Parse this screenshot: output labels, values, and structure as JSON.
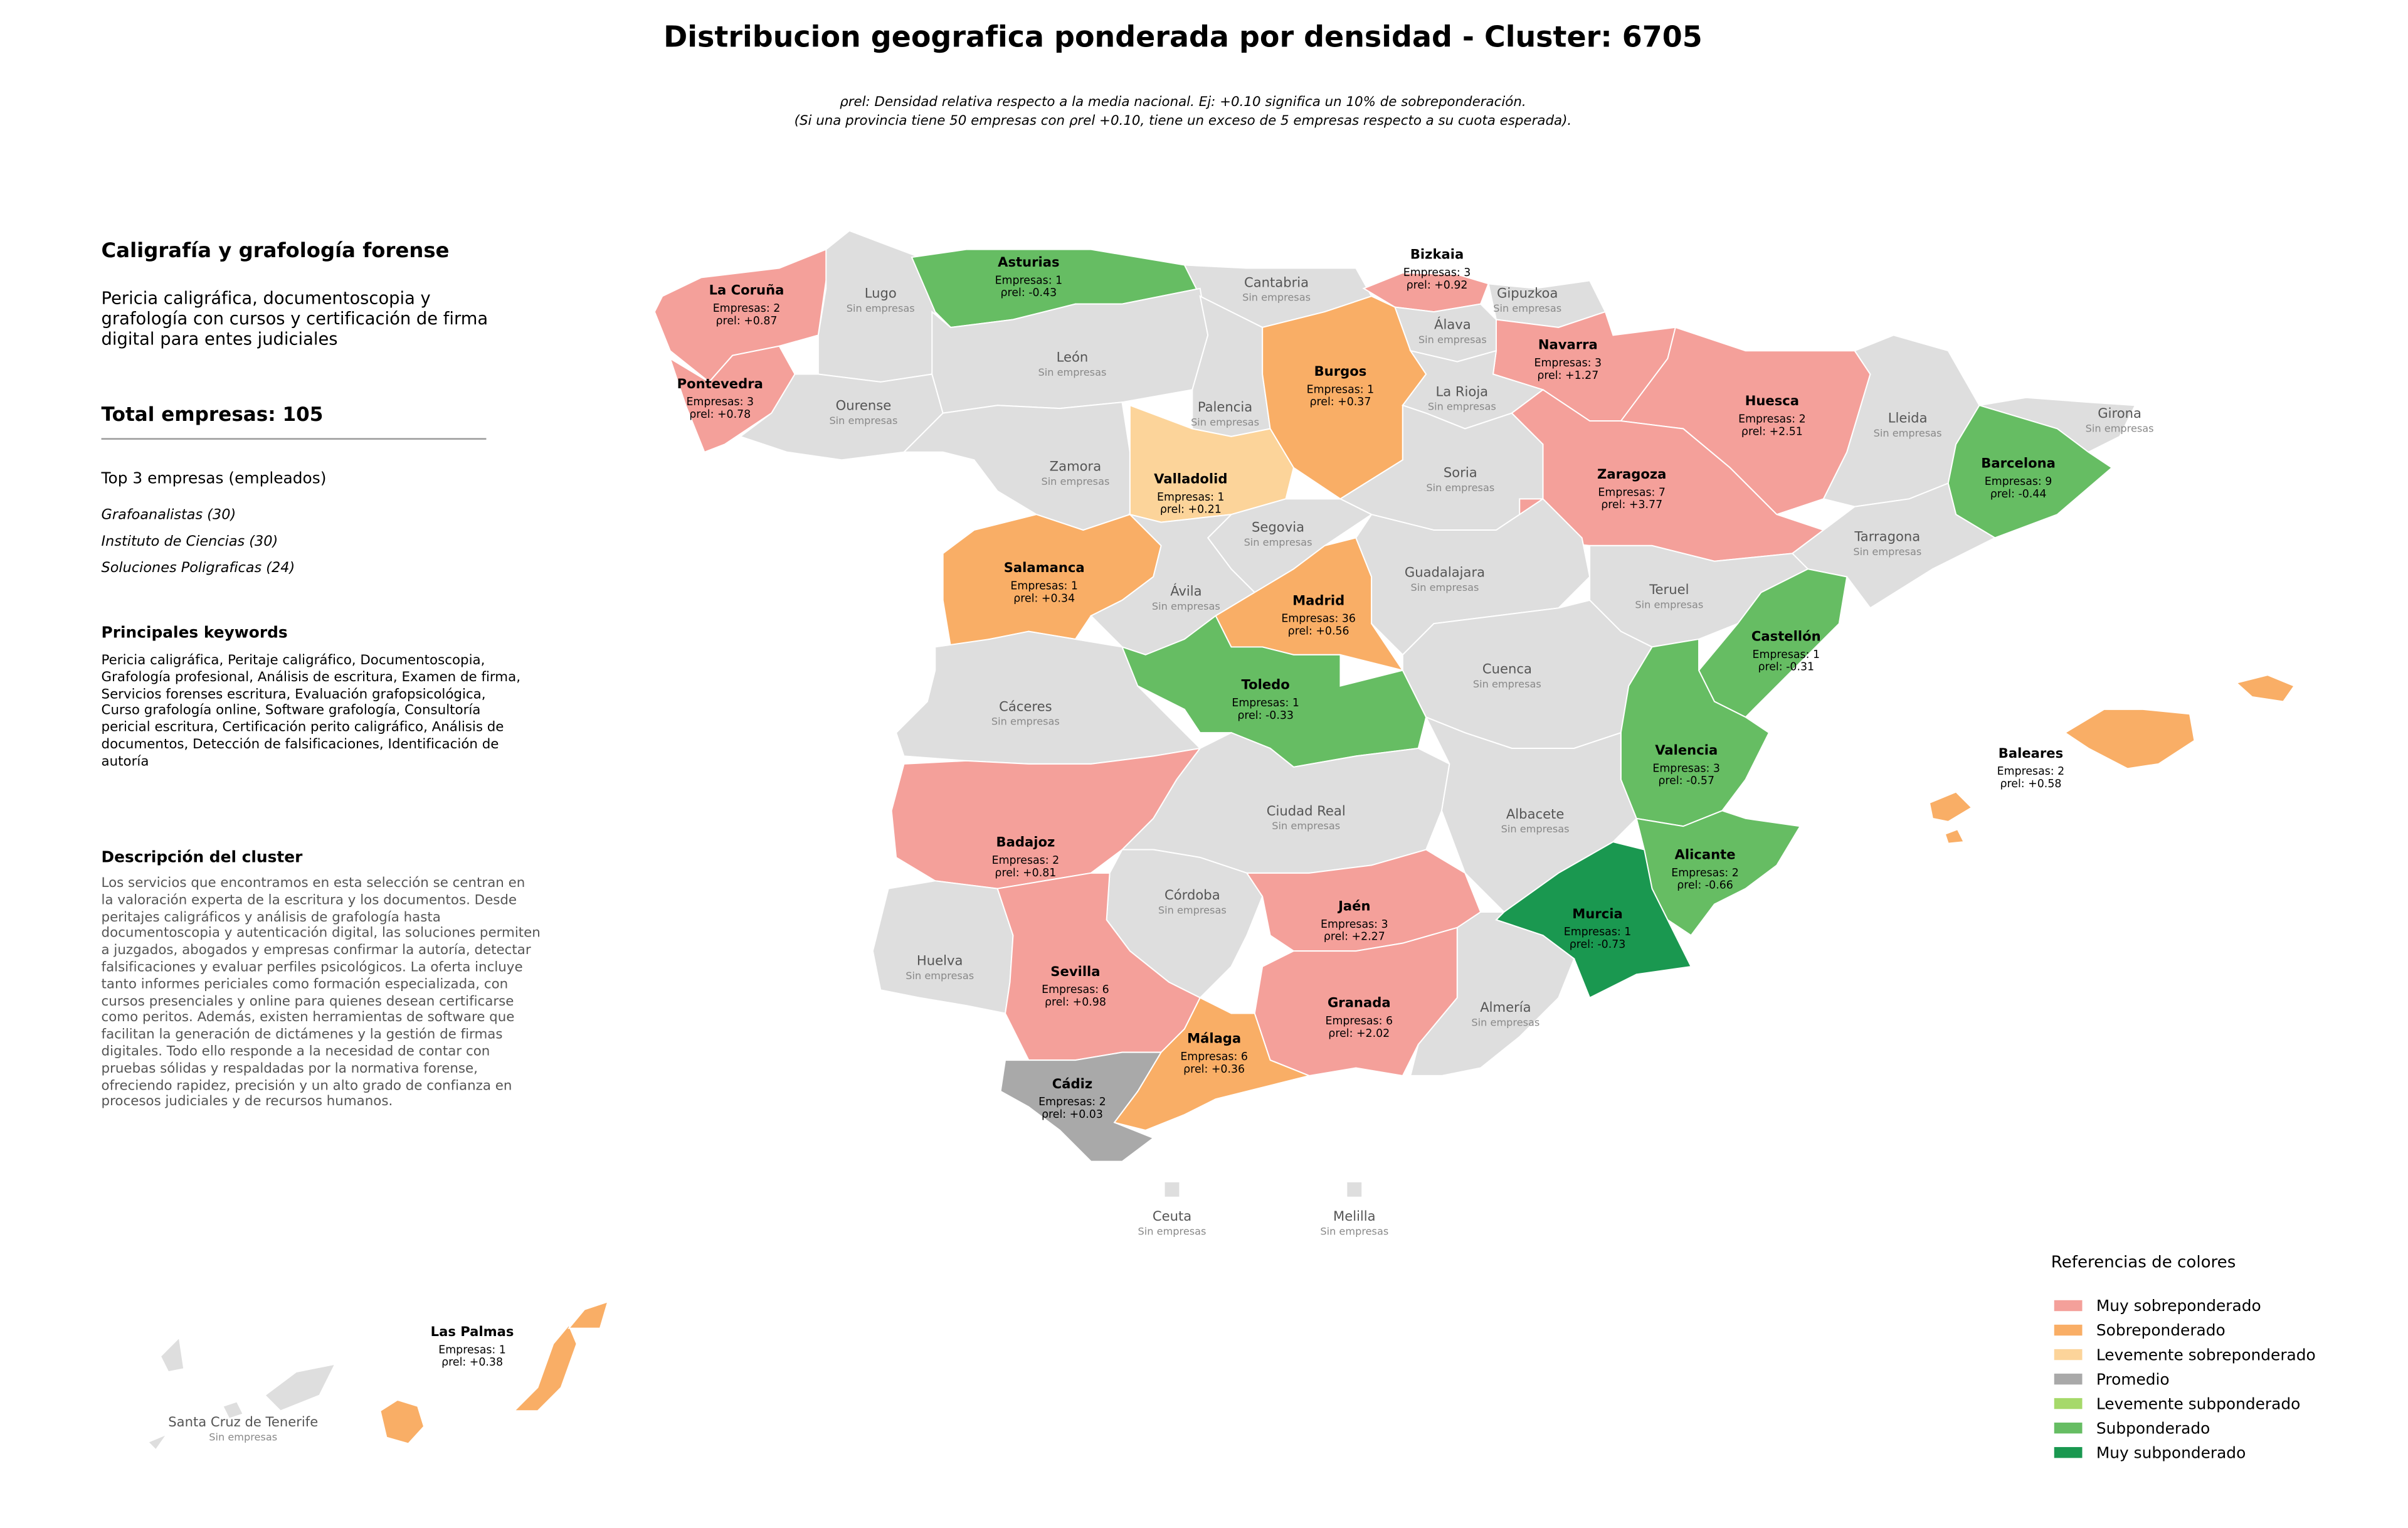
{
  "header": {
    "title": "Distribucion geografica ponderada por densidad - Cluster: 6705",
    "note_1": "ρrel: Densidad relativa respecto a la media nacional. Ej: +0.10 significa un 10% de sobreponderación.",
    "note_2": "(Si una provincia tiene 50 empresas con ρrel +0.10, tiene un exceso de 5 empresas respecto a su cuota esperada)."
  },
  "panel": {
    "title": "Caligrafía y grafología forense",
    "subtitle": "Pericia caligráfica, documentoscopia y grafología con cursos y certificación de firma digital para entes judiciales",
    "total": "Total empresas: 105",
    "top_title": "Top 3 empresas (empleados)",
    "top": [
      "Grafoanalistas (30)",
      "Instituto de Ciencias (30)",
      "Soluciones Poligraficas (24)"
    ],
    "keywords_title": "Principales keywords",
    "keywords": "Pericia caligráfica, Peritaje caligráfico, Documentoscopia, Grafología profesional, Análisis de escritura, Examen de firma, Servicios forenses escritura, Evaluación grafopsicológica, Curso grafología online, Software grafología, Consultoría pericial escritura, Certificación perito caligráfico, Análisis de documentos, Detección de falsificaciones, Identificación de autoría",
    "description_title": "Descripción del cluster",
    "description": "Los servicios que encontramos en esta selección se centran en la valoración experta de la escritura y los documentos. Desde peritajes caligráficos y análisis de grafología hasta documentoscopia y autenticación digital, las soluciones permiten a juzgados, abogados y empresas confirmar la autoría, detectar falsificaciones y evaluar perfiles psicológicos. La oferta incluye tanto informes periciales como formación especializada, con cursos presenciales y online para quienes desean certificarse como peritos. Además, existen herramientas de software que facilitan la generación de dictámenes y la gestión de firmas digitales. Todo ello responde a la necesidad de contar con pruebas sólidas y respaldadas por la normativa forense, ofreciendo rapidez, precisión y un alto grado de confianza en procesos judiciales y de recursos humanos."
  },
  "provinces": [
    {
      "name": "La Coruña",
      "empresas": "Empresas: 2",
      "rho": "ρrel: +0.87",
      "color": "#f4a09a"
    },
    {
      "name": "Lugo",
      "status": "Sin empresas",
      "color": "#dedede"
    },
    {
      "name": "Pontevedra",
      "empresas": "Empresas: 3",
      "rho": "ρrel: +0.78",
      "color": "#f4a09a"
    },
    {
      "name": "Ourense",
      "status": "Sin empresas",
      "color": "#dedede"
    },
    {
      "name": "Asturias",
      "empresas": "Empresas: 1",
      "rho": "ρrel: -0.43",
      "color": "#66bd63"
    },
    {
      "name": "Cantabria",
      "status": "Sin empresas",
      "color": "#dedede"
    },
    {
      "name": "Bizkaia",
      "empresas": "Empresas: 3",
      "rho": "ρrel: +0.92",
      "color": "#f4a09a"
    },
    {
      "name": "Gipuzkoa",
      "status": "Sin empresas",
      "color": "#dedede"
    },
    {
      "name": "Álava",
      "status": "Sin empresas",
      "color": "#dedede"
    },
    {
      "name": "Navarra",
      "empresas": "Empresas: 3",
      "rho": "ρrel: +1.27",
      "color": "#f4a09a"
    },
    {
      "name": "León",
      "status": "Sin empresas",
      "color": "#dedede"
    },
    {
      "name": "Palencia",
      "status": "Sin empresas",
      "color": "#dedede"
    },
    {
      "name": "Burgos",
      "empresas": "Empresas: 1",
      "rho": "ρrel: +0.37",
      "color": "#f9ae66"
    },
    {
      "name": "La Rioja",
      "status": "Sin empresas",
      "color": "#dedede"
    },
    {
      "name": "Zamora",
      "status": "Sin empresas",
      "color": "#dedede"
    },
    {
      "name": "Valladolid",
      "empresas": "Empresas: 1",
      "rho": "ρrel: +0.21",
      "color": "#fcd49a"
    },
    {
      "name": "Soria",
      "status": "Sin empresas",
      "color": "#dedede"
    },
    {
      "name": "Huesca",
      "empresas": "Empresas: 2",
      "rho": "ρrel: +2.51",
      "color": "#f4a09a"
    },
    {
      "name": "Zaragoza",
      "empresas": "Empresas: 7",
      "rho": "ρrel: +3.77",
      "color": "#f4a09a"
    },
    {
      "name": "Lleida",
      "status": "Sin empresas",
      "color": "#dedede"
    },
    {
      "name": "Girona",
      "status": "Sin empresas",
      "color": "#dedede"
    },
    {
      "name": "Barcelona",
      "empresas": "Empresas: 9",
      "rho": "ρrel: -0.44",
      "color": "#66bd63"
    },
    {
      "name": "Tarragona",
      "status": "Sin empresas",
      "color": "#dedede"
    },
    {
      "name": "Salamanca",
      "empresas": "Empresas: 1",
      "rho": "ρrel: +0.34",
      "color": "#f9ae66"
    },
    {
      "name": "Segovia",
      "status": "Sin empresas",
      "color": "#dedede"
    },
    {
      "name": "Ávila",
      "status": "Sin empresas",
      "color": "#dedede"
    },
    {
      "name": "Madrid",
      "empresas": "Empresas: 36",
      "rho": "ρrel: +0.56",
      "color": "#f9ae66"
    },
    {
      "name": "Guadalajara",
      "status": "Sin empresas",
      "color": "#dedede"
    },
    {
      "name": "Teruel",
      "status": "Sin empresas",
      "color": "#dedede"
    },
    {
      "name": "Castellón",
      "empresas": "Empresas: 1",
      "rho": "ρrel: -0.31",
      "color": "#66bd63"
    },
    {
      "name": "Cáceres",
      "status": "Sin empresas",
      "color": "#dedede"
    },
    {
      "name": "Toledo",
      "empresas": "Empresas: 1",
      "rho": "ρrel: -0.33",
      "color": "#66bd63"
    },
    {
      "name": "Cuenca",
      "status": "Sin empresas",
      "color": "#dedede"
    },
    {
      "name": "Valencia",
      "empresas": "Empresas: 3",
      "rho": "ρrel: -0.57",
      "color": "#66bd63"
    },
    {
      "name": "Badajoz",
      "empresas": "Empresas: 2",
      "rho": "ρrel: +0.81",
      "color": "#f4a09a"
    },
    {
      "name": "Ciudad Real",
      "status": "Sin empresas",
      "color": "#dedede"
    },
    {
      "name": "Albacete",
      "status": "Sin empresas",
      "color": "#dedede"
    },
    {
      "name": "Alicante",
      "empresas": "Empresas: 2",
      "rho": "ρrel: -0.66",
      "color": "#66bd63"
    },
    {
      "name": "Murcia",
      "empresas": "Empresas: 1",
      "rho": "ρrel: -0.73",
      "color": "#1a9850"
    },
    {
      "name": "Córdoba",
      "status": "Sin empresas",
      "color": "#dedede"
    },
    {
      "name": "Jaén",
      "empresas": "Empresas: 3",
      "rho": "ρrel: +2.27",
      "color": "#f4a09a"
    },
    {
      "name": "Granada",
      "empresas": "Empresas: 6",
      "rho": "ρrel: +2.02",
      "color": "#f4a09a"
    },
    {
      "name": "Almería",
      "status": "Sin empresas",
      "color": "#dedede"
    },
    {
      "name": "Huelva",
      "status": "Sin empresas",
      "color": "#dedede"
    },
    {
      "name": "Sevilla",
      "empresas": "Empresas: 6",
      "rho": "ρrel: +0.98",
      "color": "#f4a09a"
    },
    {
      "name": "Málaga",
      "empresas": "Empresas: 6",
      "rho": "ρrel: +0.36",
      "color": "#f9ae66"
    },
    {
      "name": "Cádiz",
      "empresas": "Empresas: 2",
      "rho": "ρrel: +0.03",
      "color": "#a9a9a9"
    },
    {
      "name": "Baleares",
      "empresas": "Empresas: 2",
      "rho": "ρrel: +0.58",
      "color": "#f9ae66"
    },
    {
      "name": "Ceuta",
      "status": "Sin empresas",
      "color": "#dedede"
    },
    {
      "name": "Melilla",
      "status": "Sin empresas",
      "color": "#dedede"
    },
    {
      "name": "Las Palmas",
      "empresas": "Empresas: 1",
      "rho": "ρrel: +0.38",
      "color": "#f9ae66"
    },
    {
      "name": "Santa Cruz de Tenerife",
      "status": "Sin empresas",
      "color": "#dedede"
    }
  ],
  "legend": {
    "title": "Referencias de colores",
    "items": [
      {
        "label": "Muy sobreponderado",
        "color": "#f4a09a"
      },
      {
        "label": "Sobreponderado",
        "color": "#f9ae66"
      },
      {
        "label": "Levemente sobreponderado",
        "color": "#fcd49a"
      },
      {
        "label": "Promedio",
        "color": "#a9a9a9"
      },
      {
        "label": "Levemente subponderado",
        "color": "#a6d96a"
      },
      {
        "label": "Subponderado",
        "color": "#66bd63"
      },
      {
        "label": "Muy subponderado",
        "color": "#1a9850"
      }
    ]
  }
}
